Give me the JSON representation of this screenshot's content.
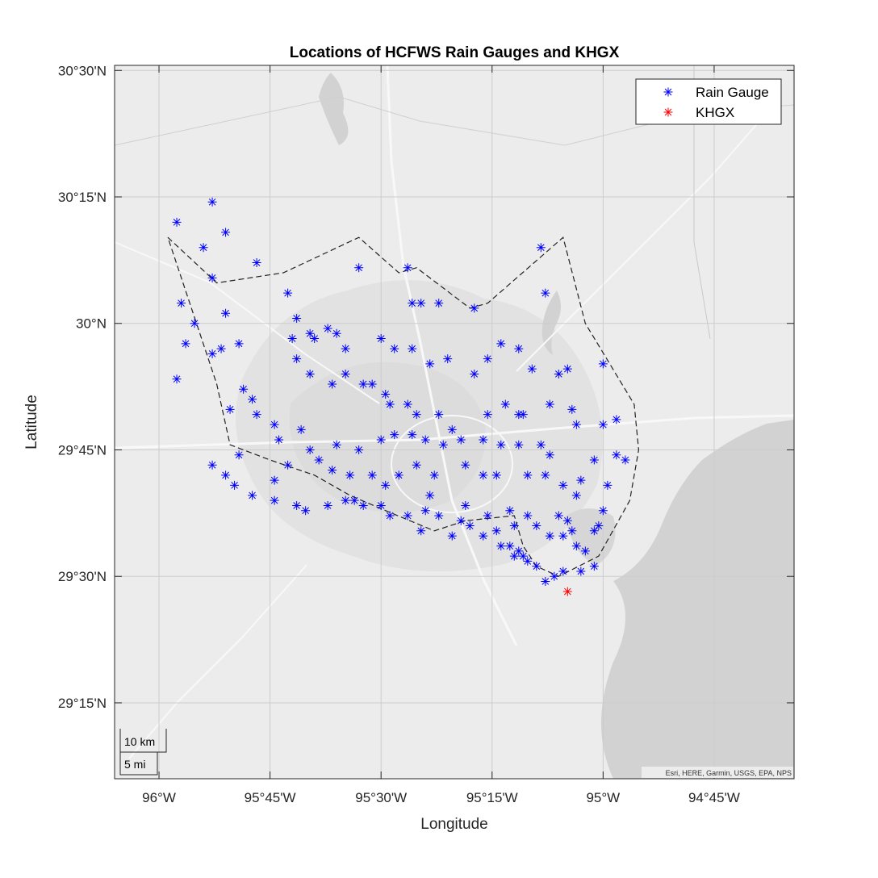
{
  "title": "Locations of HCFWS Rain Gauges and KHGX",
  "xlabel": "Longitude",
  "ylabel": "Latitude",
  "attribution": "Esri, HERE, Garmin, USGS, EPA, NPS",
  "scalebar": {
    "km": "10 km",
    "mi": "5 mi"
  },
  "legend": {
    "position": "top-right",
    "items": [
      {
        "label": "Rain Gauge",
        "color": "#0000ff",
        "marker": "asterisk"
      },
      {
        "label": "KHGX",
        "color": "#ff0000",
        "marker": "asterisk"
      }
    ]
  },
  "x_ticks": [
    {
      "value": -96.0,
      "label": "96°W"
    },
    {
      "value": -95.75,
      "label": "95°45'W"
    },
    {
      "value": -95.5,
      "label": "95°30'W"
    },
    {
      "value": -95.25,
      "label": "95°15'W"
    },
    {
      "value": -95.0,
      "label": "95°W"
    },
    {
      "value": -94.75,
      "label": "94°45'W"
    }
  ],
  "y_ticks": [
    {
      "value": 30.5,
      "label": "30°30'N"
    },
    {
      "value": 30.25,
      "label": "30°15'N"
    },
    {
      "value": 30.0,
      "label": "30°N"
    },
    {
      "value": 29.75,
      "label": "29°45'N"
    },
    {
      "value": 29.5,
      "label": "29°30'N"
    },
    {
      "value": 29.25,
      "label": "29°15'N"
    }
  ],
  "chart_data": {
    "type": "scatter",
    "xlim": [
      -96.1,
      -94.57
    ],
    "ylim": [
      29.1,
      30.51
    ],
    "grid": true,
    "basemap": "light gray canvas",
    "boundary": [
      [
        -95.98,
        30.17
      ],
      [
        -95.87,
        30.08
      ],
      [
        -95.72,
        30.1
      ],
      [
        -95.55,
        30.17
      ],
      [
        -95.46,
        30.1
      ],
      [
        -95.42,
        30.11
      ],
      [
        -95.3,
        30.03
      ],
      [
        -95.26,
        30.04
      ],
      [
        -95.09,
        30.17
      ],
      [
        -95.04,
        30.0
      ],
      [
        -94.93,
        29.84
      ],
      [
        -94.92,
        29.75
      ],
      [
        -94.94,
        29.65
      ],
      [
        -95.01,
        29.54
      ],
      [
        -95.1,
        29.5
      ],
      [
        -95.15,
        29.52
      ],
      [
        -95.18,
        29.56
      ],
      [
        -95.2,
        29.62
      ],
      [
        -95.31,
        29.61
      ],
      [
        -95.38,
        29.59
      ],
      [
        -95.49,
        29.63
      ],
      [
        -95.57,
        29.66
      ],
      [
        -95.65,
        29.7
      ],
      [
        -95.75,
        29.73
      ],
      [
        -95.84,
        29.76
      ],
      [
        -95.87,
        29.88
      ]
    ],
    "series": [
      {
        "name": "Rain Gauge",
        "color": "#0000ff",
        "points": [
          [
            -95.88,
            30.24
          ],
          [
            -95.85,
            30.18
          ],
          [
            -95.96,
            30.2
          ],
          [
            -95.9,
            30.15
          ],
          [
            -95.88,
            30.09
          ],
          [
            -95.78,
            30.12
          ],
          [
            -95.71,
            30.06
          ],
          [
            -95.55,
            30.11
          ],
          [
            -95.44,
            30.11
          ],
          [
            -95.14,
            30.15
          ],
          [
            -95.95,
            30.04
          ],
          [
            -95.92,
            30.0
          ],
          [
            -95.85,
            30.02
          ],
          [
            -95.69,
            30.01
          ],
          [
            -95.43,
            30.04
          ],
          [
            -95.41,
            30.04
          ],
          [
            -95.37,
            30.04
          ],
          [
            -95.29,
            30.03
          ],
          [
            -95.13,
            30.06
          ],
          [
            -95.94,
            29.96
          ],
          [
            -95.86,
            29.95
          ],
          [
            -95.82,
            29.96
          ],
          [
            -95.88,
            29.94
          ],
          [
            -95.96,
            29.89
          ],
          [
            -95.81,
            29.87
          ],
          [
            -95.79,
            29.85
          ],
          [
            -95.84,
            29.83
          ],
          [
            -95.7,
            29.97
          ],
          [
            -95.66,
            29.98
          ],
          [
            -95.65,
            29.97
          ],
          [
            -95.62,
            29.99
          ],
          [
            -95.6,
            29.98
          ],
          [
            -95.58,
            29.95
          ],
          [
            -95.5,
            29.97
          ],
          [
            -95.47,
            29.95
          ],
          [
            -95.43,
            29.95
          ],
          [
            -95.39,
            29.92
          ],
          [
            -95.35,
            29.93
          ],
          [
            -95.29,
            29.9
          ],
          [
            -95.26,
            29.93
          ],
          [
            -95.23,
            29.96
          ],
          [
            -95.19,
            29.95
          ],
          [
            -95.16,
            29.91
          ],
          [
            -95.1,
            29.9
          ],
          [
            -95.08,
            29.91
          ],
          [
            -95.0,
            29.92
          ],
          [
            -95.69,
            29.93
          ],
          [
            -95.66,
            29.9
          ],
          [
            -95.61,
            29.88
          ],
          [
            -95.58,
            29.9
          ],
          [
            -95.54,
            29.88
          ],
          [
            -95.52,
            29.88
          ],
          [
            -95.49,
            29.86
          ],
          [
            -95.48,
            29.84
          ],
          [
            -95.44,
            29.84
          ],
          [
            -95.42,
            29.82
          ],
          [
            -95.37,
            29.82
          ],
          [
            -95.34,
            29.79
          ],
          [
            -95.26,
            29.82
          ],
          [
            -95.22,
            29.84
          ],
          [
            -95.19,
            29.82
          ],
          [
            -95.18,
            29.82
          ],
          [
            -95.12,
            29.84
          ],
          [
            -95.07,
            29.83
          ],
          [
            -95.06,
            29.8
          ],
          [
            -95.0,
            29.8
          ],
          [
            -94.97,
            29.81
          ],
          [
            -95.78,
            29.82
          ],
          [
            -95.74,
            29.8
          ],
          [
            -95.73,
            29.77
          ],
          [
            -95.68,
            29.79
          ],
          [
            -95.66,
            29.75
          ],
          [
            -95.6,
            29.76
          ],
          [
            -95.55,
            29.75
          ],
          [
            -95.5,
            29.77
          ],
          [
            -95.47,
            29.78
          ],
          [
            -95.43,
            29.78
          ],
          [
            -95.4,
            29.77
          ],
          [
            -95.36,
            29.76
          ],
          [
            -95.32,
            29.77
          ],
          [
            -95.27,
            29.77
          ],
          [
            -95.23,
            29.76
          ],
          [
            -95.19,
            29.76
          ],
          [
            -95.14,
            29.76
          ],
          [
            -95.12,
            29.74
          ],
          [
            -95.82,
            29.74
          ],
          [
            -95.88,
            29.72
          ],
          [
            -95.85,
            29.7
          ],
          [
            -95.83,
            29.68
          ],
          [
            -95.74,
            29.69
          ],
          [
            -95.71,
            29.72
          ],
          [
            -95.64,
            29.73
          ],
          [
            -95.61,
            29.71
          ],
          [
            -95.57,
            29.7
          ],
          [
            -95.52,
            29.7
          ],
          [
            -95.49,
            29.68
          ],
          [
            -95.46,
            29.7
          ],
          [
            -95.42,
            29.72
          ],
          [
            -95.38,
            29.7
          ],
          [
            -95.31,
            29.72
          ],
          [
            -95.27,
            29.7
          ],
          [
            -95.24,
            29.7
          ],
          [
            -95.17,
            29.7
          ],
          [
            -95.13,
            29.7
          ],
          [
            -94.97,
            29.74
          ],
          [
            -94.95,
            29.73
          ],
          [
            -95.79,
            29.66
          ],
          [
            -95.74,
            29.65
          ],
          [
            -95.69,
            29.64
          ],
          [
            -95.67,
            29.63
          ],
          [
            -95.62,
            29.64
          ],
          [
            -95.58,
            29.65
          ],
          [
            -95.54,
            29.64
          ],
          [
            -95.5,
            29.64
          ],
          [
            -95.44,
            29.62
          ],
          [
            -95.4,
            29.63
          ],
          [
            -95.37,
            29.62
          ],
          [
            -95.32,
            29.61
          ],
          [
            -95.3,
            29.6
          ],
          [
            -95.26,
            29.62
          ],
          [
            -95.21,
            29.63
          ],
          [
            -95.2,
            29.6
          ],
          [
            -95.17,
            29.62
          ],
          [
            -95.15,
            29.6
          ],
          [
            -95.12,
            29.58
          ],
          [
            -95.09,
            29.58
          ],
          [
            -95.06,
            29.56
          ],
          [
            -95.04,
            29.55
          ],
          [
            -95.02,
            29.52
          ],
          [
            -95.05,
            29.51
          ],
          [
            -95.09,
            29.51
          ],
          [
            -95.11,
            29.5
          ],
          [
            -95.13,
            29.49
          ],
          [
            -95.15,
            29.52
          ],
          [
            -95.17,
            29.53
          ],
          [
            -95.18,
            29.54
          ],
          [
            -95.2,
            29.54
          ],
          [
            -95.07,
            29.59
          ],
          [
            -95.02,
            29.59
          ],
          [
            -95.01,
            29.6
          ],
          [
            -95.0,
            29.63
          ],
          [
            -95.08,
            29.61
          ],
          [
            -95.1,
            29.62
          ],
          [
            -95.23,
            29.56
          ],
          [
            -95.19,
            29.55
          ],
          [
            -95.24,
            29.59
          ],
          [
            -95.34,
            29.58
          ],
          [
            -95.41,
            29.59
          ],
          [
            -95.48,
            29.62
          ],
          [
            -95.56,
            29.65
          ],
          [
            -95.21,
            29.56
          ],
          [
            -95.27,
            29.58
          ],
          [
            -95.31,
            29.64
          ],
          [
            -95.39,
            29.66
          ],
          [
            -95.06,
            29.66
          ],
          [
            -95.09,
            29.68
          ],
          [
            -94.99,
            29.68
          ],
          [
            -95.05,
            29.69
          ],
          [
            -95.02,
            29.73
          ]
        ]
      },
      {
        "name": "KHGX",
        "color": "#ff0000",
        "points": [
          [
            -95.08,
            29.47
          ]
        ]
      }
    ]
  }
}
